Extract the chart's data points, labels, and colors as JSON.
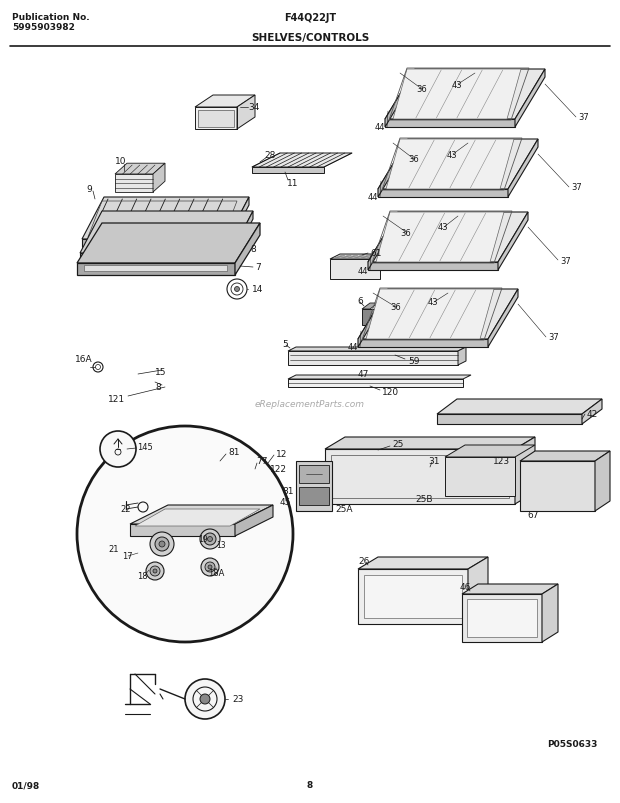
{
  "title_left1": "Publication No.",
  "title_left2": "5995903982",
  "title_center": "F44Q22JT",
  "title_section": "SHELVES/CONTROLS",
  "bottom_left": "01/98",
  "bottom_center": "8",
  "bottom_right": "P05S0633",
  "watermark": "eReplacementParts.com",
  "bg_color": "#ffffff",
  "dc": "#1a1a1a",
  "fig_width": 6.2,
  "fig_height": 8.04,
  "dpi": 100
}
